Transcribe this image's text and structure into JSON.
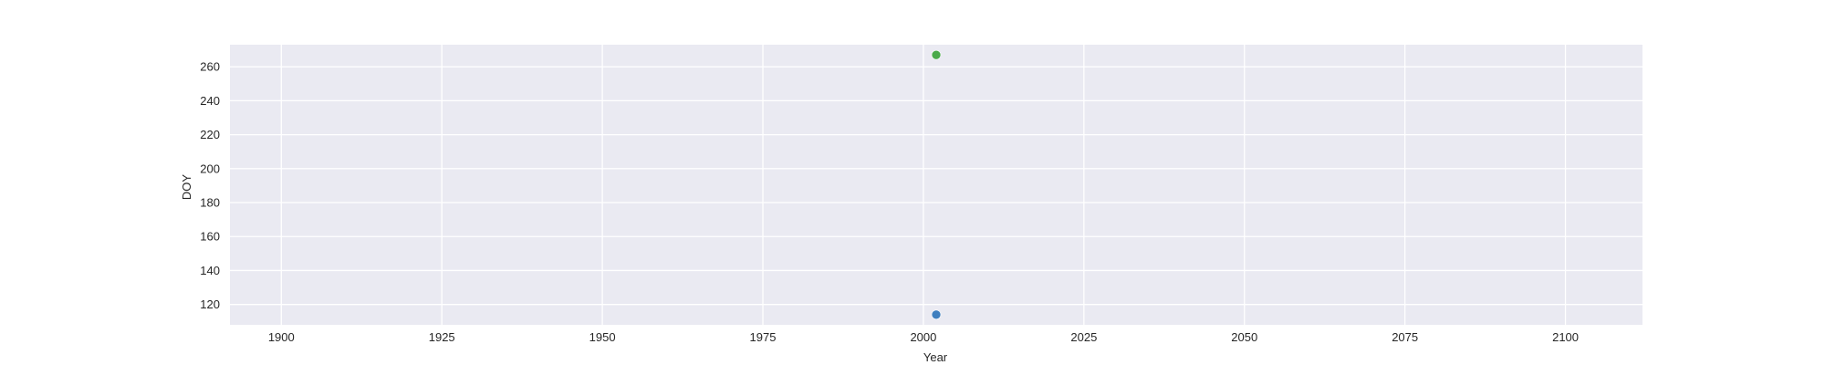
{
  "chart_data": {
    "type": "scatter",
    "title": "",
    "xlabel": "Year",
    "ylabel": "DOY",
    "xlim": [
      1892,
      2112
    ],
    "ylim": [
      108,
      273
    ],
    "x_ticks": [
      1900,
      1925,
      1950,
      1975,
      2000,
      2025,
      2050,
      2075,
      2100
    ],
    "y_ticks": [
      120,
      140,
      160,
      180,
      200,
      220,
      240,
      260
    ],
    "grid": true,
    "legend": "none",
    "background_color": "#eaeaf2",
    "grid_color": "#ffffff",
    "series": [
      {
        "color": "#3f7fbf",
        "points": [
          {
            "x": 2002,
            "y": 114
          }
        ]
      },
      {
        "color": "#4aaa4a",
        "points": [
          {
            "x": 2002,
            "y": 267
          }
        ]
      }
    ]
  }
}
